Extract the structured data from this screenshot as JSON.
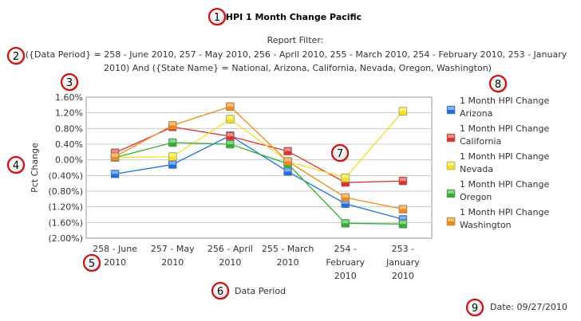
{
  "header": {
    "title": "HPI 1 Month Change Pacific",
    "filter_heading": "Report Filter:",
    "filter_line1": "({Data Period} = 258 -  June 2010, 257 - May 2010, 256 - April 2010, 255 - March 2010, 254 - February 2010, 253 -  January",
    "filter_line2": "2010) And ({State Name} = National, Arizona, California, Nevada, Oregon, Washington)"
  },
  "footer": {
    "date": "Date: 09/27/2010"
  },
  "callouts": [
    "1",
    "2",
    "3",
    "4",
    "5",
    "6",
    "7",
    "8",
    "9"
  ],
  "chart_data": {
    "type": "line",
    "title": "HPI 1 Month Change Pacific",
    "xlabel": "Data Period",
    "ylabel": "Pct Change",
    "categories": [
      [
        "258 - June",
        "2010"
      ],
      [
        "257 - May",
        "2010"
      ],
      [
        "256 - April",
        "2010"
      ],
      [
        "255 - March",
        "2010"
      ],
      [
        "254 -",
        "February",
        "2010"
      ],
      [
        "253 -",
        "January",
        "2010"
      ]
    ],
    "yticks": [
      "1.60%",
      "1.20%",
      "0.80%",
      "0.40%",
      "0.00%",
      "(0.40%)",
      "(0.80%)",
      "(1.20%)",
      "(1.60%)",
      "(2.00%)"
    ],
    "ylim": [
      -2.0,
      1.6
    ],
    "grid": true,
    "legend_position": "right",
    "series": [
      {
        "name": [
          "1 Month HPI Change",
          "Arizona"
        ],
        "color": "#1f6fe0",
        "values": [
          -0.36,
          -0.12,
          0.62,
          -0.3,
          -1.12,
          -1.52
        ]
      },
      {
        "name": [
          "1 Month HPI Change",
          "California"
        ],
        "color": "#e03030",
        "values": [
          0.18,
          0.84,
          0.6,
          0.22,
          -0.58,
          -0.54
        ]
      },
      {
        "name": [
          "1 Month HPI Change",
          "Nevada"
        ],
        "color": "#f2e020",
        "values": [
          0.06,
          0.08,
          1.04,
          -0.04,
          -0.46,
          1.24
        ]
      },
      {
        "name": [
          "1 Month HPI Change",
          "Oregon"
        ],
        "color": "#2fb030",
        "values": [
          0.06,
          0.44,
          0.4,
          -0.1,
          -1.62,
          -1.64
        ]
      },
      {
        "name": [
          "1 Month HPI Change",
          "Washington"
        ],
        "color": "#f08a18",
        "values": [
          0.08,
          0.88,
          1.36,
          -0.04,
          -0.96,
          -1.26
        ]
      }
    ]
  }
}
